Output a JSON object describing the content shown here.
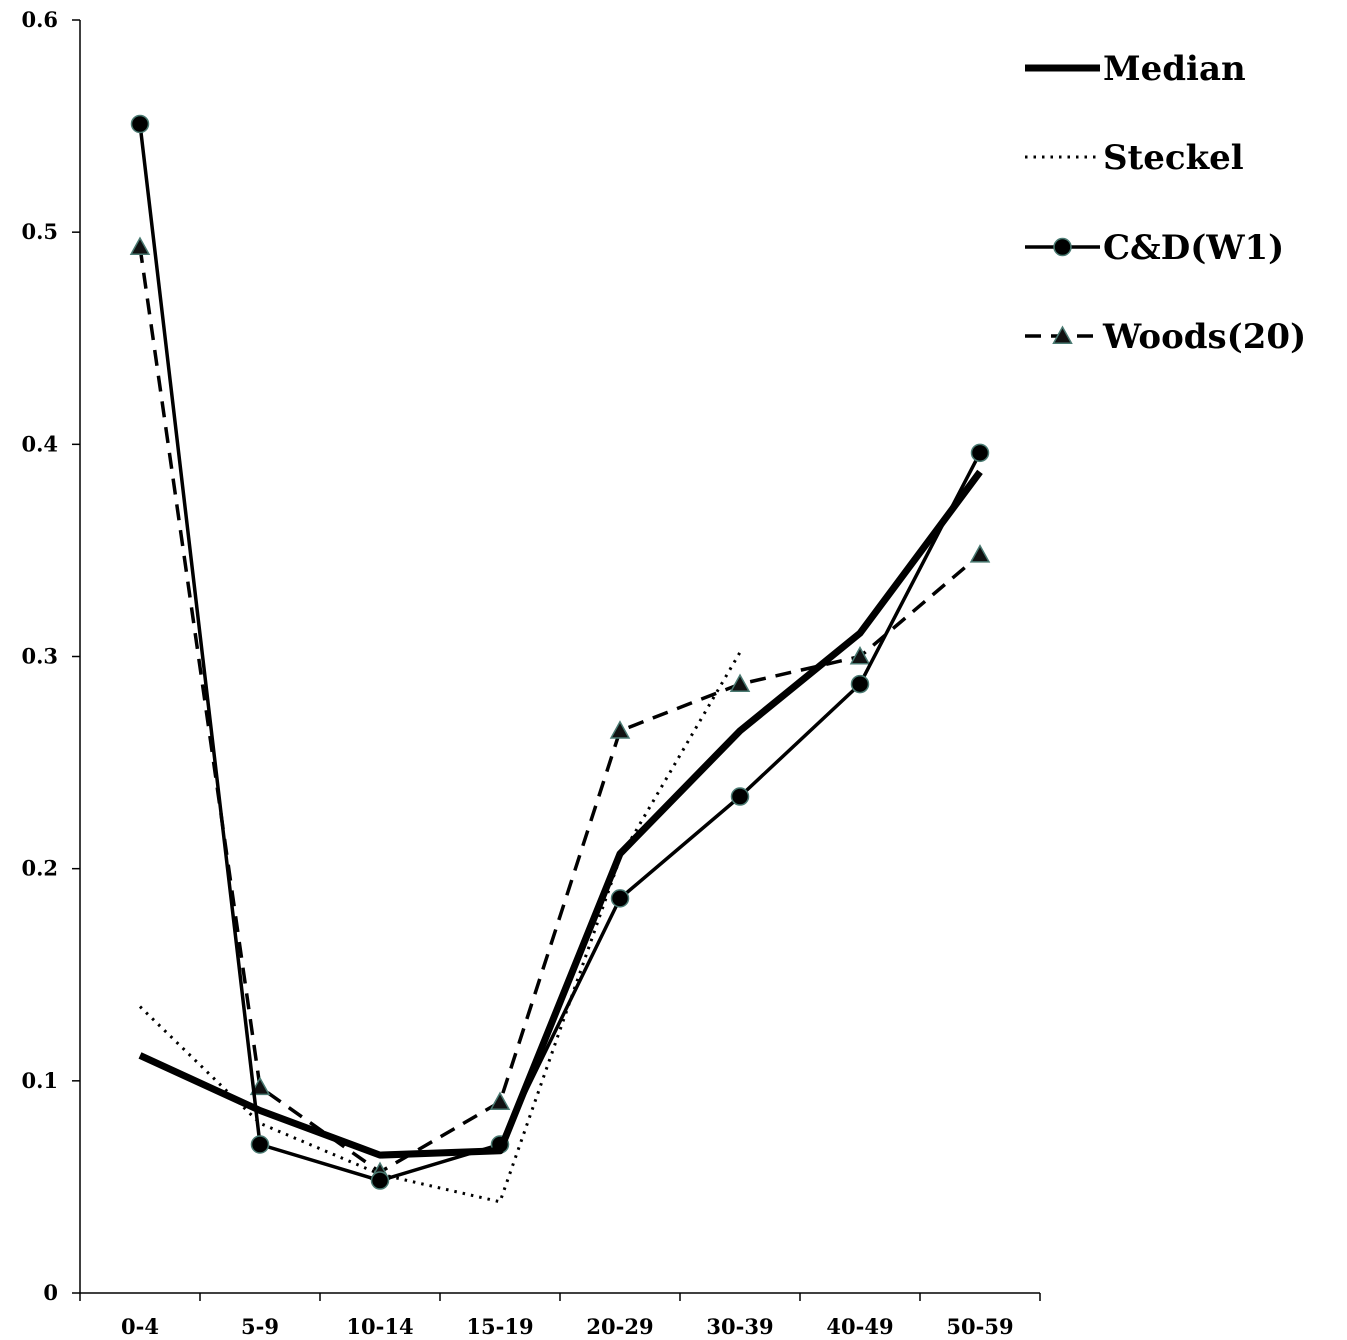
{
  "chart_data": {
    "type": "line",
    "title": "",
    "xlabel": "",
    "ylabel": "",
    "categories": [
      "0-4",
      "5-9",
      "10-14",
      "15-19",
      "20-29",
      "30-39",
      "40-49",
      "50-59"
    ],
    "ylim": [
      0,
      0.6
    ],
    "y_ticks": [
      "0",
      "0.1",
      "0.2",
      "0.3",
      "0.4",
      "0.5",
      "0.6"
    ],
    "grid": false,
    "legend_position": "top-right",
    "series": [
      {
        "name": "Median",
        "style": "thick-solid",
        "marker": "none",
        "color": "#000000",
        "values": [
          0.112,
          0.086,
          0.065,
          0.067,
          0.207,
          0.265,
          0.311,
          0.387
        ]
      },
      {
        "name": "Steckel",
        "style": "dotted",
        "marker": "none",
        "color": "#000000",
        "values": [
          0.135,
          0.08,
          0.056,
          0.043,
          0.205,
          0.302,
          null,
          null
        ]
      },
      {
        "name": "C&D(W1)",
        "style": "solid",
        "marker": "circle",
        "color": "#000000",
        "values": [
          0.551,
          0.07,
          0.053,
          0.07,
          0.186,
          0.234,
          0.287,
          0.396
        ]
      },
      {
        "name": "Woods(20)",
        "style": "dashed",
        "marker": "triangle",
        "color": "#000000",
        "values": [
          0.493,
          0.097,
          0.057,
          0.09,
          0.265,
          0.287,
          0.3,
          0.348
        ]
      }
    ],
    "marker_stroke_color": "#4a7a72"
  }
}
